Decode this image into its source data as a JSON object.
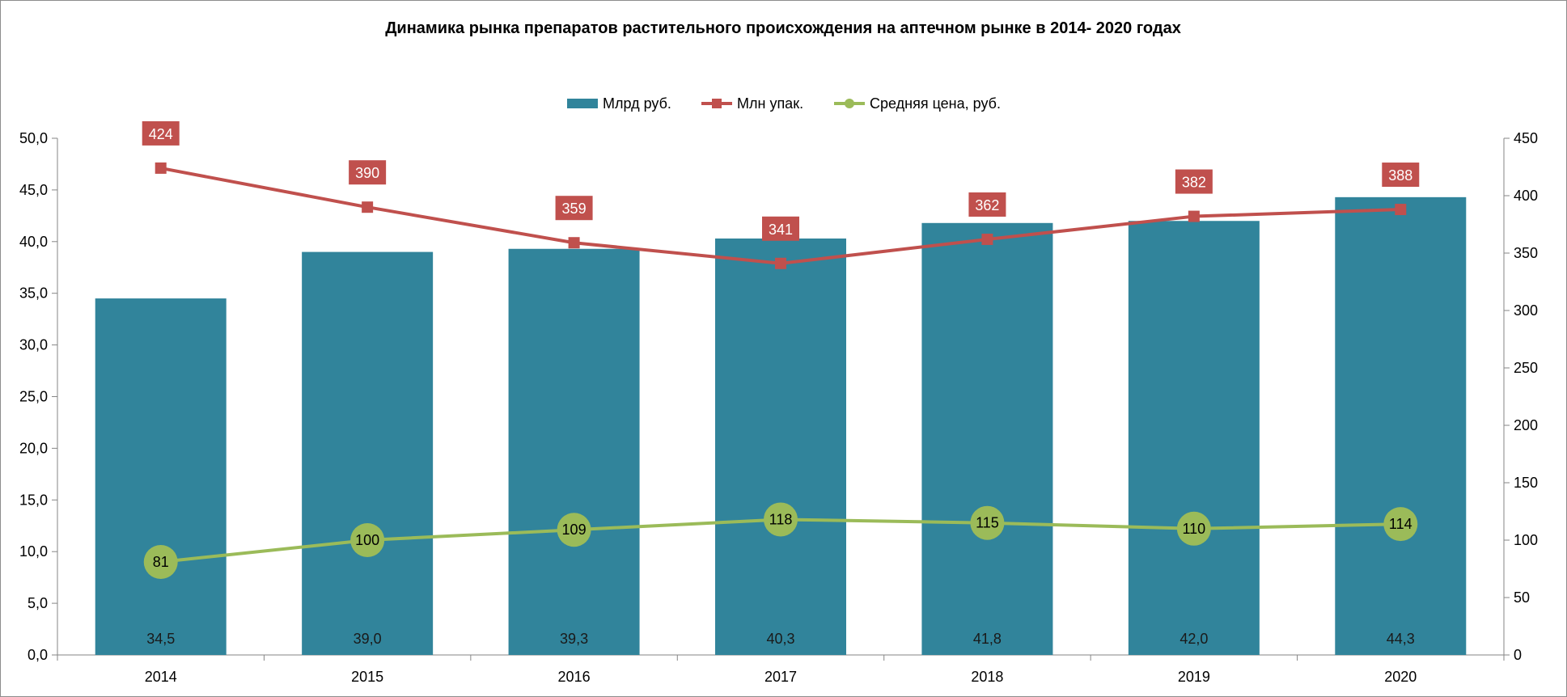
{
  "chart_data": {
    "type": "bar",
    "title": "Динамика рынка препаратов растительного происхождения на аптечном рынке в 2014- 2020 годах",
    "categories": [
      "2014",
      "2015",
      "2016",
      "2017",
      "2018",
      "2019",
      "2020"
    ],
    "series": [
      {
        "name": "Млрд руб.",
        "type": "bar",
        "axis": "left",
        "color": "#31849b",
        "values": [
          34.5,
          39.0,
          39.3,
          40.3,
          41.8,
          42.0,
          44.3
        ],
        "labels": [
          "34,5",
          "39,0",
          "39,3",
          "40,3",
          "41,8",
          "42,0",
          "44,3"
        ]
      },
      {
        "name": "Млн упак.",
        "type": "line",
        "axis": "right",
        "color": "#c0504d",
        "marker": "square",
        "values": [
          424,
          390,
          359,
          341,
          362,
          382,
          388
        ],
        "labels": [
          "424",
          "390",
          "359",
          "341",
          "362",
          "382",
          "388"
        ]
      },
      {
        "name": "Средняя цена, руб.",
        "type": "line",
        "axis": "right",
        "color": "#9bbb59",
        "marker": "circle",
        "values": [
          81,
          100,
          109,
          118,
          115,
          110,
          114
        ],
        "labels": [
          "81",
          "100",
          "109",
          "118",
          "115",
          "110",
          "114"
        ]
      }
    ],
    "y_left": {
      "lim": [
        0,
        50
      ],
      "ticks": [
        "0,0",
        "5,0",
        "10,0",
        "15,0",
        "20,0",
        "25,0",
        "30,0",
        "35,0",
        "40,0",
        "45,0",
        "50,0"
      ]
    },
    "y_right": {
      "lim": [
        0,
        450
      ],
      "ticks": [
        "0",
        "50",
        "100",
        "150",
        "200",
        "250",
        "300",
        "350",
        "400",
        "450"
      ]
    },
    "xlabel": "",
    "ylabel": "",
    "grid": false,
    "legend_position": "top"
  }
}
